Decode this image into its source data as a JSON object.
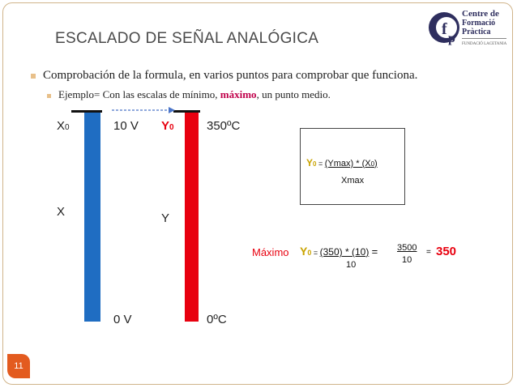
{
  "slide": {
    "title": "ESCALADO DE SEÑAL ANALÓGICA",
    "page_number": "11",
    "logo": {
      "line1": "Centre de",
      "line2": "Formació",
      "line3": "Pràctica",
      "line4": "FUNDACIÓ LACETANIA"
    }
  },
  "bullets": {
    "first": "Comprobación de la formula, en varios puntos para comprobar que funciona.",
    "second_prefix": "Ejemplo= Con las escalas de mínimo, ",
    "second_emphasis": "máximo",
    "second_suffix": ", un punto medio."
  },
  "diagram": {
    "x0_label": "X",
    "x0_sub": "0",
    "ten_v": "10 V",
    "y0_label": "Y",
    "y0_sub": "0",
    "temp_max": "350ºC",
    "x_label": "X",
    "y_label": "Y",
    "zero_v": "0 V",
    "temp_min": "0ºC"
  },
  "formula": {
    "y0": "Y",
    "y0_sub": "0",
    "eq": " = ",
    "numerator": "(Ymax) * (X",
    "numerator_sub": "0",
    "numerator_close": ")",
    "denominator": "Xmax"
  },
  "example": {
    "label": "Máximo",
    "y0": "Y",
    "y0_sub": "0",
    "eq": " = ",
    "numerator": "(350) * (10",
    "numerator_close": ")",
    "denominator": "10",
    "equals": "=",
    "frac_num": "3500",
    "frac_den": "10",
    "equals2": "=",
    "result": "350"
  },
  "colors": {
    "blue_bar": "#1f6dc2",
    "red_bar": "#e8000f",
    "accent": "#e35b1f",
    "highlight": "#c0004a"
  }
}
